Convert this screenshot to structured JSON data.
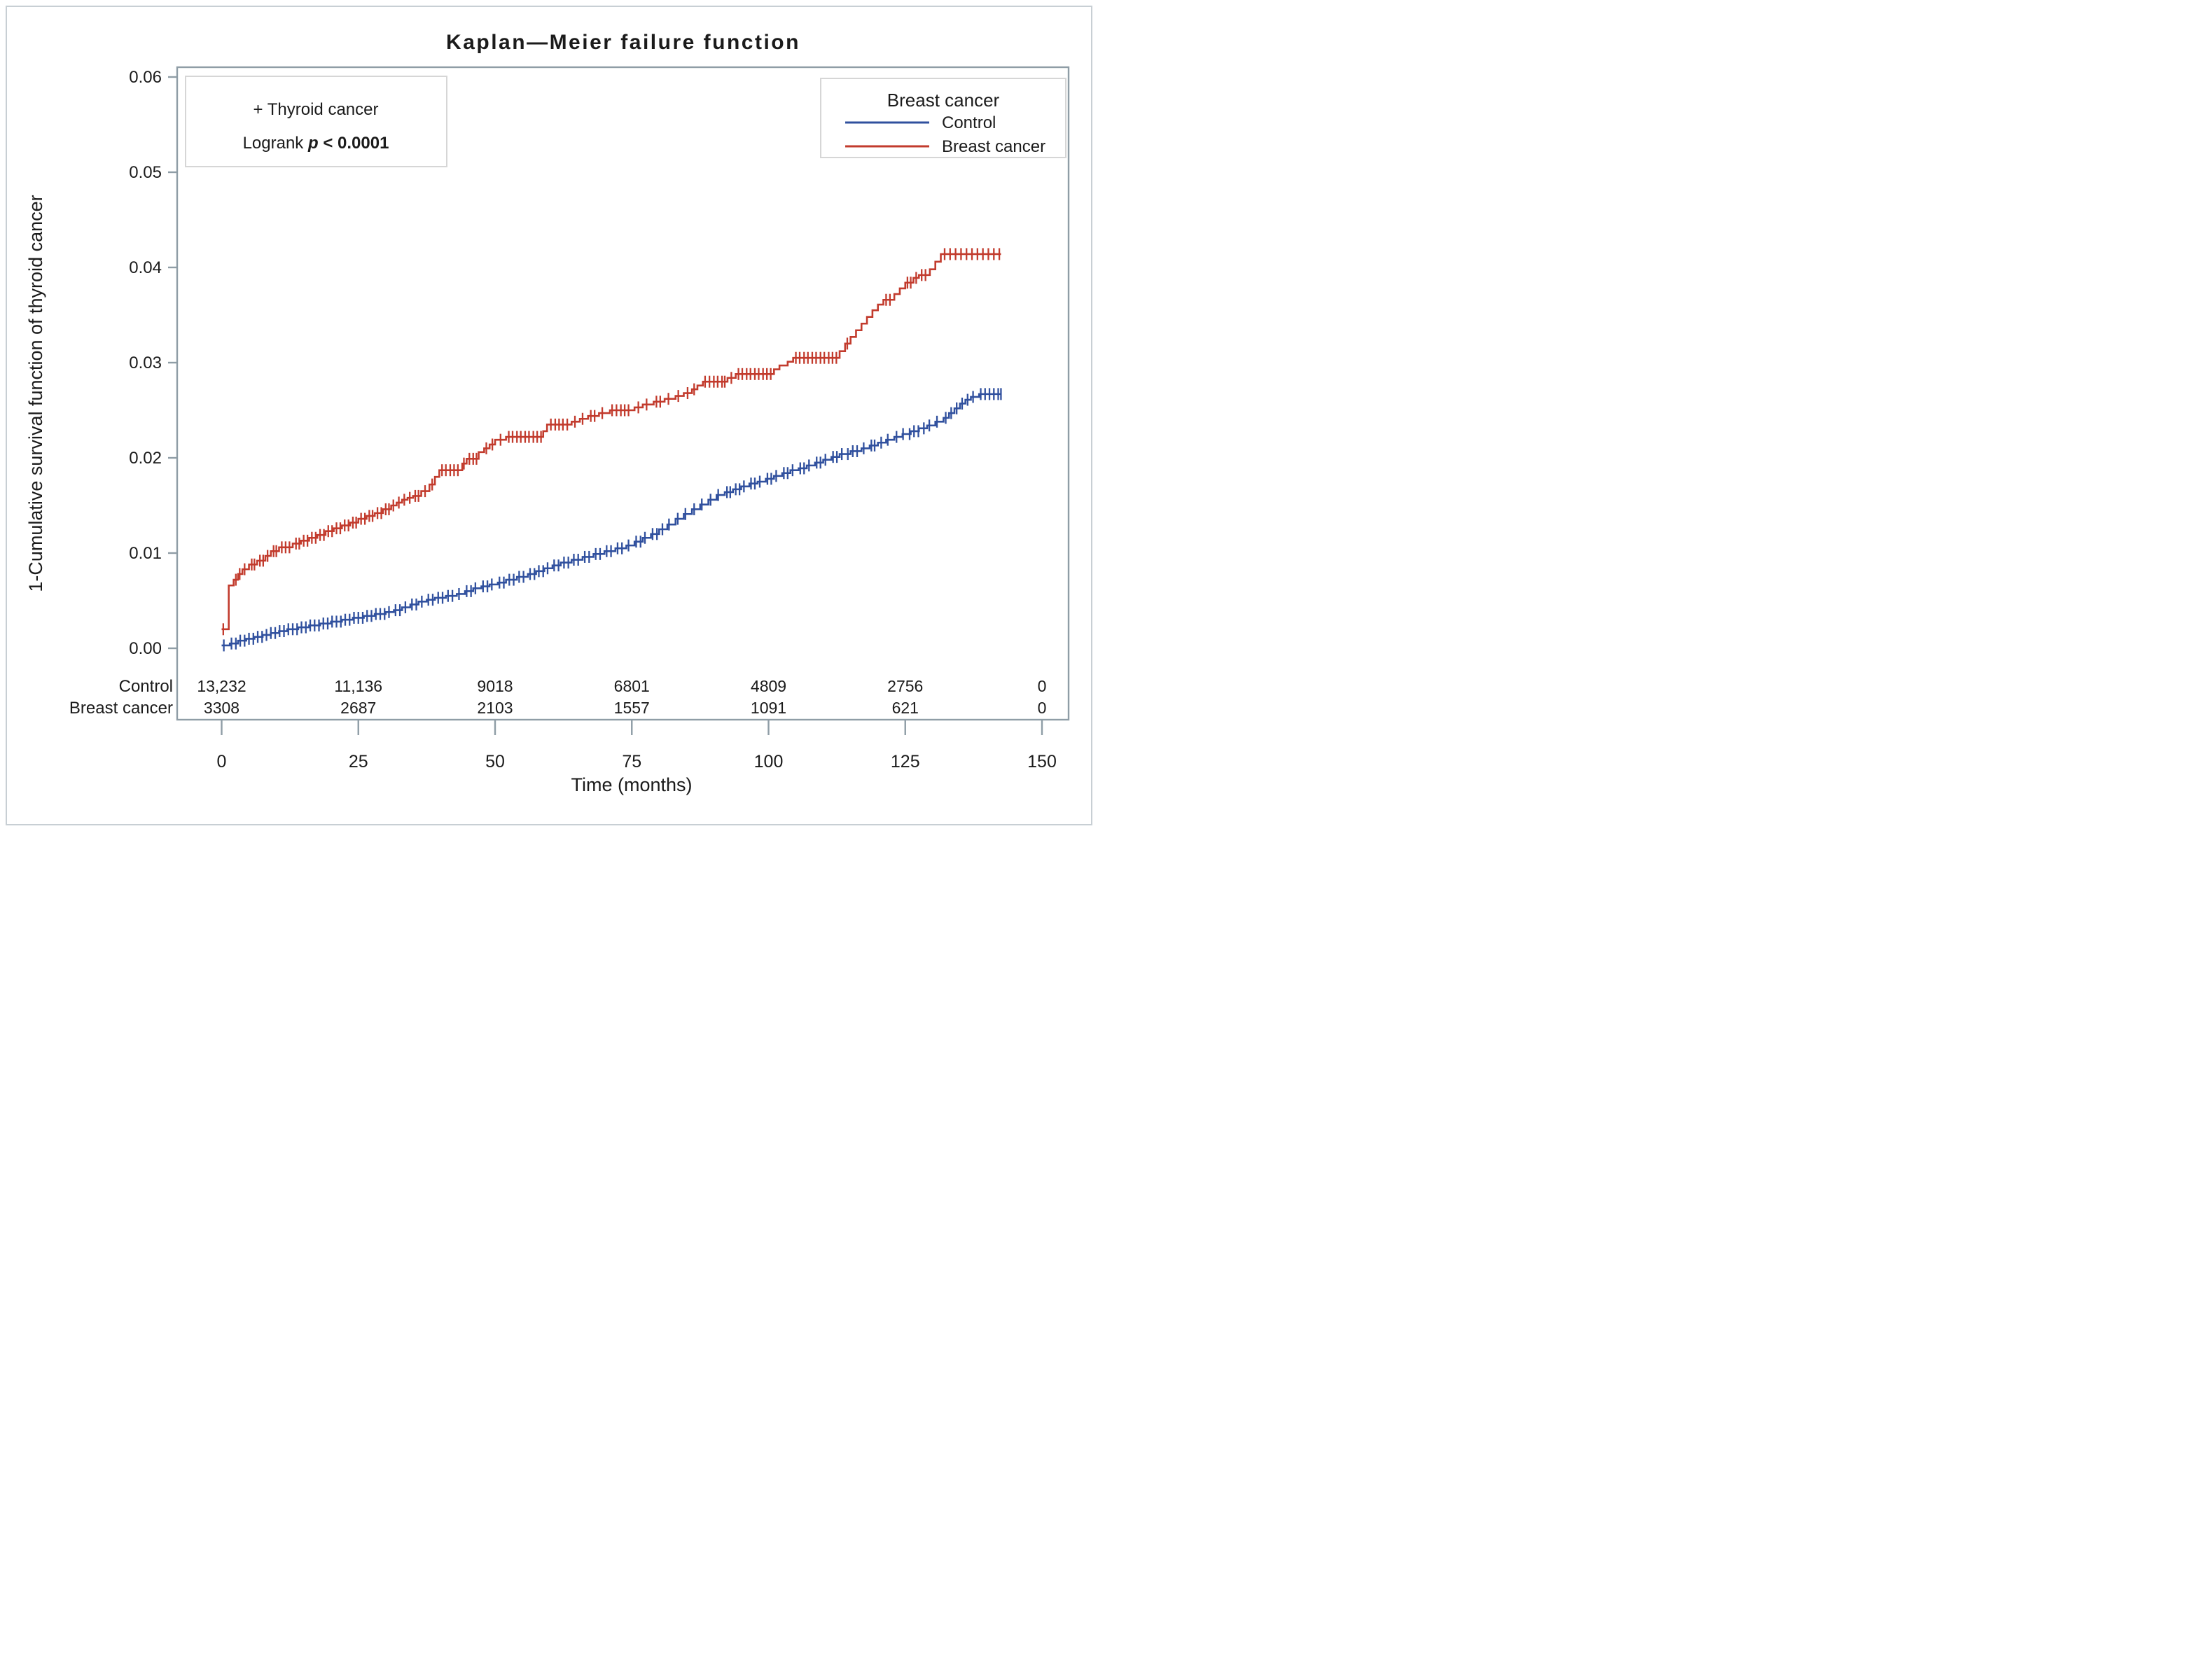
{
  "title": "Kaplan—Meier failure function",
  "annotation": {
    "line1": "+ Thyroid cancer",
    "logrank_prefix": "Logrank ",
    "logrank_p": "p",
    "logrank_rest": " < 0.0001"
  },
  "legend": {
    "title": "Breast cancer",
    "items": [
      {
        "label": "Control",
        "color": "#30509e"
      },
      {
        "label": "Breast cancer",
        "color": "#c23b2d"
      }
    ]
  },
  "colors": {
    "frame": "#8f9da6",
    "box_border": "#d6d6d6",
    "text": "#1b1b1b"
  },
  "chart_data": {
    "type": "line",
    "subtype": "kaplan-meier-step",
    "title": "Kaplan—Meier failure function",
    "xlabel": "Time (months)",
    "ylabel": "1-Cumulative survival function of thyroid cancer",
    "xlim": [
      0,
      150
    ],
    "ylim": [
      0,
      0.06
    ],
    "x_ticks": [
      0,
      25,
      50,
      75,
      100,
      125,
      150
    ],
    "y_ticks": [
      0,
      0.01,
      0.02,
      0.03,
      0.04,
      0.05,
      0.06
    ],
    "y_tick_labels": [
      "0.00",
      "0.01",
      "0.02",
      "0.03",
      "0.04",
      "0.05",
      "0.06"
    ],
    "grid": false,
    "legend_position": "top-right",
    "end_time": 142.5,
    "series": [
      {
        "name": "Control",
        "color": "#30509e",
        "steps": [
          [
            0,
            0.0003
          ],
          [
            1.5,
            0.0005
          ],
          [
            3,
            0.0008
          ],
          [
            4.5,
            0.001
          ],
          [
            6,
            0.0012
          ],
          [
            7.5,
            0.0014
          ],
          [
            9,
            0.0016
          ],
          [
            10.5,
            0.0018
          ],
          [
            12,
            0.002
          ],
          [
            14,
            0.0022
          ],
          [
            16,
            0.0024
          ],
          [
            18,
            0.0026
          ],
          [
            20,
            0.0028
          ],
          [
            22,
            0.003
          ],
          [
            24,
            0.0032
          ],
          [
            26,
            0.0034
          ],
          [
            28,
            0.0036
          ],
          [
            30,
            0.0038
          ],
          [
            31.5,
            0.004
          ],
          [
            33,
            0.0043
          ],
          [
            34.5,
            0.0046
          ],
          [
            36,
            0.0049
          ],
          [
            37.5,
            0.0051
          ],
          [
            39,
            0.0053
          ],
          [
            41,
            0.0055
          ],
          [
            43,
            0.0057
          ],
          [
            44.5,
            0.006
          ],
          [
            46,
            0.0063
          ],
          [
            47.5,
            0.0065
          ],
          [
            49,
            0.0067
          ],
          [
            50.5,
            0.0069
          ],
          [
            52,
            0.0072
          ],
          [
            54,
            0.0075
          ],
          [
            56,
            0.0078
          ],
          [
            57.5,
            0.0081
          ],
          [
            59,
            0.0084
          ],
          [
            60.5,
            0.0087
          ],
          [
            62,
            0.009
          ],
          [
            64,
            0.0093
          ],
          [
            66,
            0.0096
          ],
          [
            68,
            0.0099
          ],
          [
            70,
            0.0102
          ],
          [
            72,
            0.0105
          ],
          [
            74,
            0.0108
          ],
          [
            75.5,
            0.0112
          ],
          [
            77,
            0.0116
          ],
          [
            78.5,
            0.012
          ],
          [
            80,
            0.0125
          ],
          [
            81.5,
            0.013
          ],
          [
            83,
            0.0136
          ],
          [
            84.5,
            0.0141
          ],
          [
            86,
            0.0146
          ],
          [
            87.5,
            0.0151
          ],
          [
            89,
            0.0156
          ],
          [
            90.5,
            0.0161
          ],
          [
            92,
            0.0164
          ],
          [
            93.5,
            0.0167
          ],
          [
            95,
            0.017
          ],
          [
            96.5,
            0.0173
          ],
          [
            98,
            0.0175
          ],
          [
            99.5,
            0.0178
          ],
          [
            101,
            0.0181
          ],
          [
            102.5,
            0.0184
          ],
          [
            104,
            0.0187
          ],
          [
            105.5,
            0.0189
          ],
          [
            107,
            0.0192
          ],
          [
            108.5,
            0.0195
          ],
          [
            110,
            0.0198
          ],
          [
            111.5,
            0.0201
          ],
          [
            113,
            0.0204
          ],
          [
            115,
            0.0207
          ],
          [
            117,
            0.021
          ],
          [
            118.5,
            0.0213
          ],
          [
            120,
            0.0216
          ],
          [
            121.5,
            0.0219
          ],
          [
            123,
            0.0222
          ],
          [
            124.5,
            0.0225
          ],
          [
            126,
            0.0228
          ],
          [
            127.5,
            0.0231
          ],
          [
            129,
            0.0234
          ],
          [
            130.5,
            0.0238
          ],
          [
            132,
            0.0242
          ],
          [
            133,
            0.0247
          ],
          [
            134,
            0.0252
          ],
          [
            135,
            0.0257
          ],
          [
            136,
            0.0261
          ],
          [
            137,
            0.0264
          ],
          [
            138.5,
            0.0267
          ]
        ],
        "censor_times": [
          0.4,
          1.8,
          2.6,
          3.4,
          4.2,
          5,
          5.8,
          6.6,
          7.4,
          8.2,
          9,
          9.8,
          10.6,
          11.4,
          12.2,
          13,
          13.8,
          14.6,
          15.4,
          16.2,
          17,
          17.8,
          18.6,
          19.4,
          20.2,
          21,
          21.8,
          22.6,
          23.4,
          24.2,
          25,
          25.8,
          26.6,
          27.4,
          28.2,
          29,
          29.8,
          30.6,
          31.8,
          32.6,
          33.6,
          34.8,
          35.6,
          36.6,
          37.8,
          38.6,
          39.6,
          40.4,
          41.4,
          42.2,
          43.4,
          44.8,
          45.6,
          46.4,
          47.8,
          48.6,
          49.4,
          50.8,
          51.6,
          52.6,
          53.4,
          54.4,
          55.2,
          56.4,
          57.2,
          58,
          58.8,
          59.6,
          60.8,
          61.6,
          62.6,
          63.4,
          64.4,
          65.2,
          66.4,
          67.2,
          68.4,
          69.2,
          70.4,
          71.2,
          72.4,
          73.2,
          74.4,
          75.8,
          76.6,
          77.4,
          78.8,
          79.6,
          80.6,
          81.8,
          83.4,
          84.8,
          86.4,
          87.8,
          89.4,
          90.8,
          92.4,
          93,
          94,
          94.7,
          95.5,
          96.8,
          97.5,
          98.4,
          99.8,
          100.5,
          101.4,
          102.8,
          103.5,
          104.4,
          105.8,
          106.5,
          107.4,
          108.8,
          109.5,
          110.4,
          111.8,
          112.5,
          113.4,
          114.5,
          115.4,
          116.2,
          117.4,
          118.8,
          119.4,
          120.6,
          121.8,
          123.4,
          124.6,
          125.8,
          126.6,
          127.4,
          128.4,
          129.4,
          130.8,
          132.4,
          133.4,
          134.4,
          135.4,
          136.4,
          137.4,
          138.8,
          139.6,
          140.4,
          141.2,
          142,
          142.5
        ]
      },
      {
        "name": "Breast cancer",
        "color": "#c23b2d",
        "steps": [
          [
            0,
            0.002
          ],
          [
            1.3,
            0.0066
          ],
          [
            2.2,
            0.0072
          ],
          [
            3,
            0.0078
          ],
          [
            3.8,
            0.0083
          ],
          [
            5,
            0.0088
          ],
          [
            6.5,
            0.0092
          ],
          [
            8,
            0.0097
          ],
          [
            9,
            0.0102
          ],
          [
            10.5,
            0.0106
          ],
          [
            13,
            0.011
          ],
          [
            14.5,
            0.0113
          ],
          [
            16,
            0.0116
          ],
          [
            17.5,
            0.0119
          ],
          [
            19,
            0.0123
          ],
          [
            20.5,
            0.0126
          ],
          [
            22,
            0.0129
          ],
          [
            23.5,
            0.0132
          ],
          [
            25,
            0.0136
          ],
          [
            26.5,
            0.0139
          ],
          [
            28,
            0.0142
          ],
          [
            29.5,
            0.0146
          ],
          [
            31,
            0.015
          ],
          [
            32,
            0.0153
          ],
          [
            33,
            0.0156
          ],
          [
            34,
            0.0158
          ],
          [
            35,
            0.016
          ],
          [
            36.5,
            0.0165
          ],
          [
            38,
            0.0172
          ],
          [
            39,
            0.018
          ],
          [
            39.8,
            0.0187
          ],
          [
            44,
            0.0194
          ],
          [
            44.8,
            0.0199
          ],
          [
            47,
            0.0206
          ],
          [
            48,
            0.021
          ],
          [
            49,
            0.0214
          ],
          [
            50,
            0.0219
          ],
          [
            52,
            0.0222
          ],
          [
            58.8,
            0.0228
          ],
          [
            59.5,
            0.0235
          ],
          [
            64,
            0.0238
          ],
          [
            65.5,
            0.0241
          ],
          [
            67,
            0.0244
          ],
          [
            69,
            0.0247
          ],
          [
            71,
            0.025
          ],
          [
            75.5,
            0.0253
          ],
          [
            77,
            0.0256
          ],
          [
            79,
            0.0259
          ],
          [
            81,
            0.0262
          ],
          [
            83,
            0.0265
          ],
          [
            84.5,
            0.0268
          ],
          [
            86,
            0.0272
          ],
          [
            87,
            0.0276
          ],
          [
            88,
            0.028
          ],
          [
            92.5,
            0.0284
          ],
          [
            94,
            0.0288
          ],
          [
            101,
            0.0293
          ],
          [
            102,
            0.0297
          ],
          [
            103.5,
            0.0301
          ],
          [
            104.5,
            0.0305
          ],
          [
            113,
            0.0312
          ],
          [
            114,
            0.032
          ],
          [
            115,
            0.0327
          ],
          [
            116,
            0.0334
          ],
          [
            117,
            0.0341
          ],
          [
            118,
            0.0348
          ],
          [
            119,
            0.0355
          ],
          [
            120,
            0.0361
          ],
          [
            121,
            0.0366
          ],
          [
            123,
            0.0372
          ],
          [
            124,
            0.0378
          ],
          [
            125,
            0.0384
          ],
          [
            126.5,
            0.0389
          ],
          [
            127.5,
            0.0392
          ],
          [
            129.5,
            0.0398
          ],
          [
            130.5,
            0.0406
          ],
          [
            131.5,
            0.0414
          ]
        ],
        "censor_times": [
          0.3,
          2.6,
          3.3,
          4.2,
          5.5,
          6,
          7,
          7.6,
          8.4,
          9.5,
          10,
          11,
          11.7,
          12.4,
          13.6,
          14.2,
          15,
          15.7,
          16.5,
          17.2,
          18,
          18.7,
          19.5,
          20.2,
          21,
          21.7,
          22.5,
          23.2,
          24,
          24.6,
          25.5,
          26.2,
          27,
          27.6,
          28.5,
          29.2,
          30,
          30.6,
          31.4,
          32.4,
          33.4,
          34.4,
          35.4,
          36,
          37.2,
          38.5,
          40.3,
          41,
          41.8,
          42.5,
          43.2,
          44.3,
          45.3,
          46,
          46.6,
          48.4,
          49.5,
          51,
          52.5,
          53.2,
          54,
          54.7,
          55.5,
          56.2,
          57,
          57.7,
          58.4,
          60.2,
          61,
          61.7,
          62.4,
          63.2,
          64.6,
          66,
          67.5,
          68.2,
          69.6,
          71.4,
          72.2,
          73,
          73.7,
          74.4,
          76.2,
          77.7,
          79.5,
          80.2,
          81.7,
          83.5,
          85.2,
          86.4,
          88.4,
          89.2,
          90,
          90.7,
          91.5,
          92,
          93.2,
          94.5,
          95.2,
          96,
          96.7,
          97.5,
          98.2,
          99,
          99.7,
          100.4,
          105,
          105.7,
          106.5,
          107.2,
          108,
          108.7,
          109.5,
          110.2,
          111,
          111.7,
          112.4,
          114.4,
          121.5,
          122.2,
          125.4,
          126,
          127,
          128,
          128.7,
          132.2,
          133.2,
          134.2,
          135.2,
          136.2,
          137.2,
          138.2,
          139.2,
          140.2,
          141.2,
          142.2
        ]
      }
    ],
    "risk_table": {
      "times": [
        0,
        25,
        50,
        75,
        100,
        125,
        150
      ],
      "rows": [
        {
          "name": "Control",
          "counts": [
            "13,232",
            "11,136",
            "9018",
            "6801",
            "4809",
            "2756",
            "0"
          ]
        },
        {
          "name": "Breast cancer",
          "counts": [
            "3308",
            "2687",
            "2103",
            "1557",
            "1091",
            "621",
            "0"
          ]
        }
      ]
    }
  }
}
